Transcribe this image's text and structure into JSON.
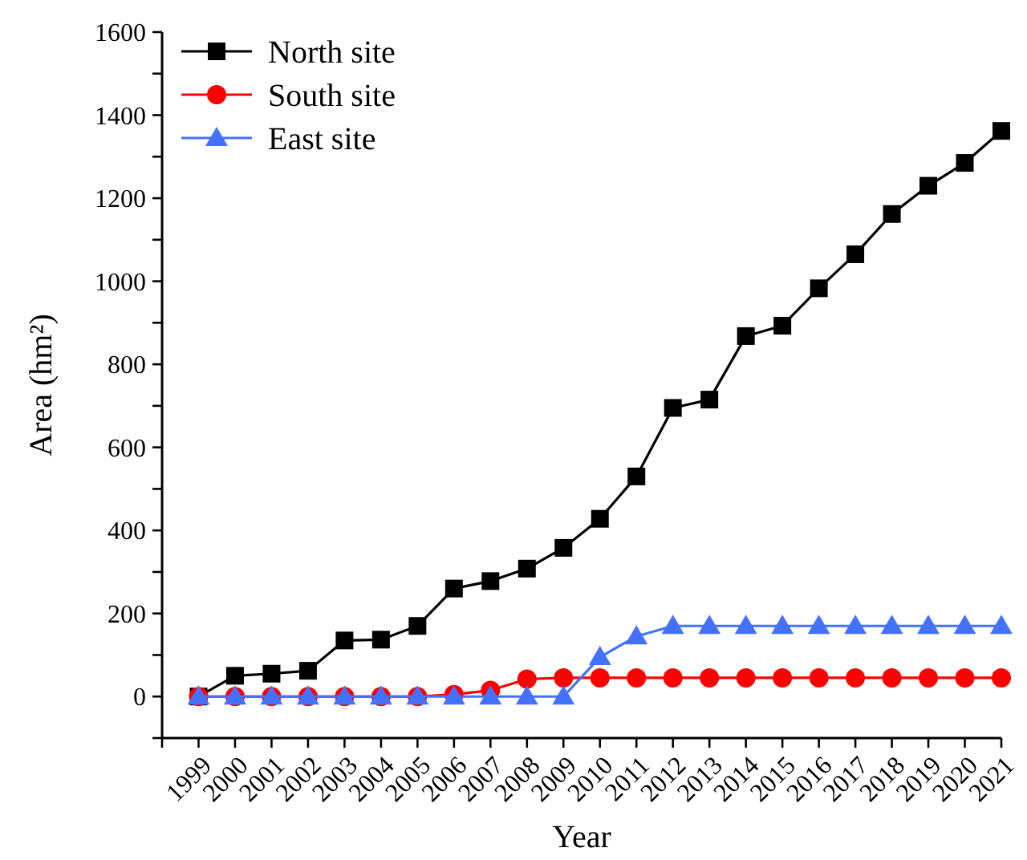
{
  "chart_data": {
    "type": "line",
    "xlabel": "Year",
    "ylabel": "Area (hm²)",
    "x": [
      1999,
      2000,
      2001,
      2002,
      2003,
      2004,
      2005,
      2006,
      2007,
      2008,
      2009,
      2010,
      2011,
      2012,
      2013,
      2014,
      2015,
      2016,
      2017,
      2018,
      2019,
      2020,
      2021
    ],
    "series": [
      {
        "name": "North site",
        "color": "#000000",
        "marker": "square",
        "values": [
          0,
          50,
          55,
          62,
          135,
          137,
          170,
          260,
          278,
          308,
          358,
          428,
          530,
          695,
          715,
          868,
          893,
          983,
          1065,
          1162,
          1230,
          1285,
          1362
        ]
      },
      {
        "name": "South site",
        "color": "#ff0000",
        "marker": "circle",
        "values": [
          0,
          0,
          0,
          0,
          0,
          0,
          0,
          5,
          15,
          42,
          45,
          45,
          45,
          45,
          45,
          45,
          45,
          45,
          45,
          45,
          45,
          45,
          45
        ]
      },
      {
        "name": "East site",
        "color": "#4472ff",
        "marker": "triangle",
        "values": [
          0,
          0,
          0,
          0,
          0,
          0,
          0,
          0,
          0,
          0,
          0,
          95,
          145,
          170,
          170,
          170,
          170,
          170,
          170,
          170,
          170,
          170,
          170
        ]
      }
    ],
    "xlim": [
      1998,
      2021
    ],
    "xticks": [
      {
        "value": 1998,
        "label": null
      },
      1999,
      2000,
      2001,
      2002,
      2003,
      2004,
      2005,
      2006,
      2007,
      2008,
      2009,
      2010,
      2011,
      2012,
      2013,
      2014,
      2015,
      2016,
      2017,
      2018,
      2019,
      2020,
      2021
    ],
    "ylim": [
      -100,
      1600
    ],
    "yticks": [
      {
        "value": -100,
        "label": null
      },
      0,
      {
        "value": 100,
        "label": null
      },
      200,
      {
        "value": 300,
        "label": null
      },
      400,
      {
        "value": 500,
        "label": null
      },
      600,
      {
        "value": 700,
        "label": null
      },
      800,
      {
        "value": 900,
        "label": null
      },
      1000,
      {
        "value": 1100,
        "label": null
      },
      1200,
      {
        "value": 1300,
        "label": null
      },
      1400,
      {
        "value": 1500,
        "label": null
      },
      1600
    ],
    "legend": "top left",
    "grid": false,
    "line_style": "solid"
  }
}
